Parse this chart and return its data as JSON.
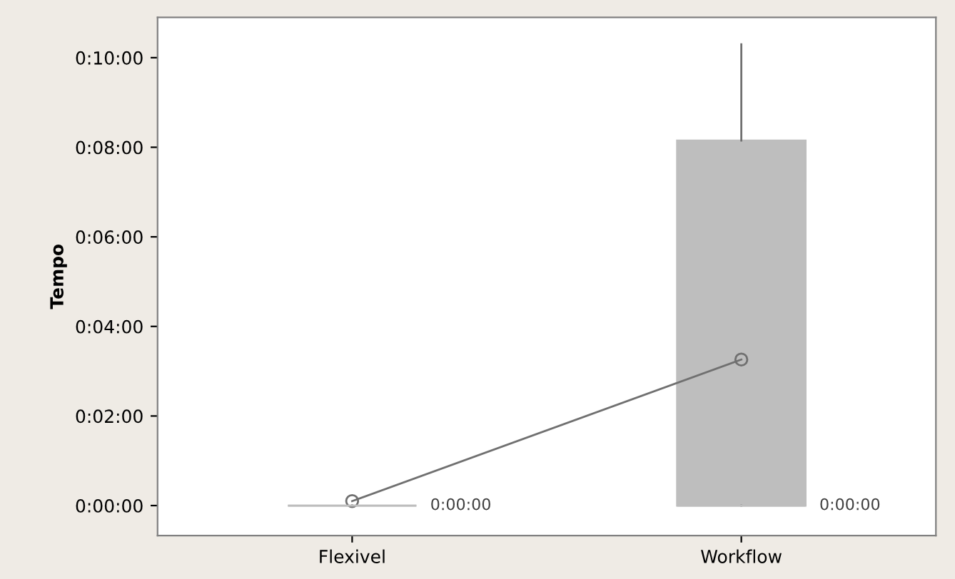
{
  "chart_data": {
    "type": "box",
    "ylabel": "Tempo",
    "categories": [
      "Flexivel",
      "Workflow"
    ],
    "boxes": [
      {
        "low": 0,
        "q1": 0,
        "median": 0,
        "q3": 0,
        "high": 0
      },
      {
        "low": 0,
        "q1": 0,
        "median": 0,
        "q3": 8.15,
        "high": 10.3
      }
    ],
    "color": "#bebebe",
    "series": [
      {
        "type": "line",
        "marker": "circle",
        "color": "#707070",
        "values": [
          0.1,
          3.26
        ]
      }
    ],
    "ylim": [
      -0.67,
      10.9
    ],
    "yticks": [
      {
        "value": 0,
        "label": "0:00:00"
      },
      {
        "value": 2,
        "label": "0:02:00"
      },
      {
        "value": 4,
        "label": "0:04:00"
      },
      {
        "value": 6,
        "label": "0:06:00"
      },
      {
        "value": 8,
        "label": "0:08:00"
      },
      {
        "value": 10,
        "label": "0:10:00"
      }
    ],
    "annotations": [
      "0:00:00",
      "0:00:00"
    ],
    "grid": false
  }
}
